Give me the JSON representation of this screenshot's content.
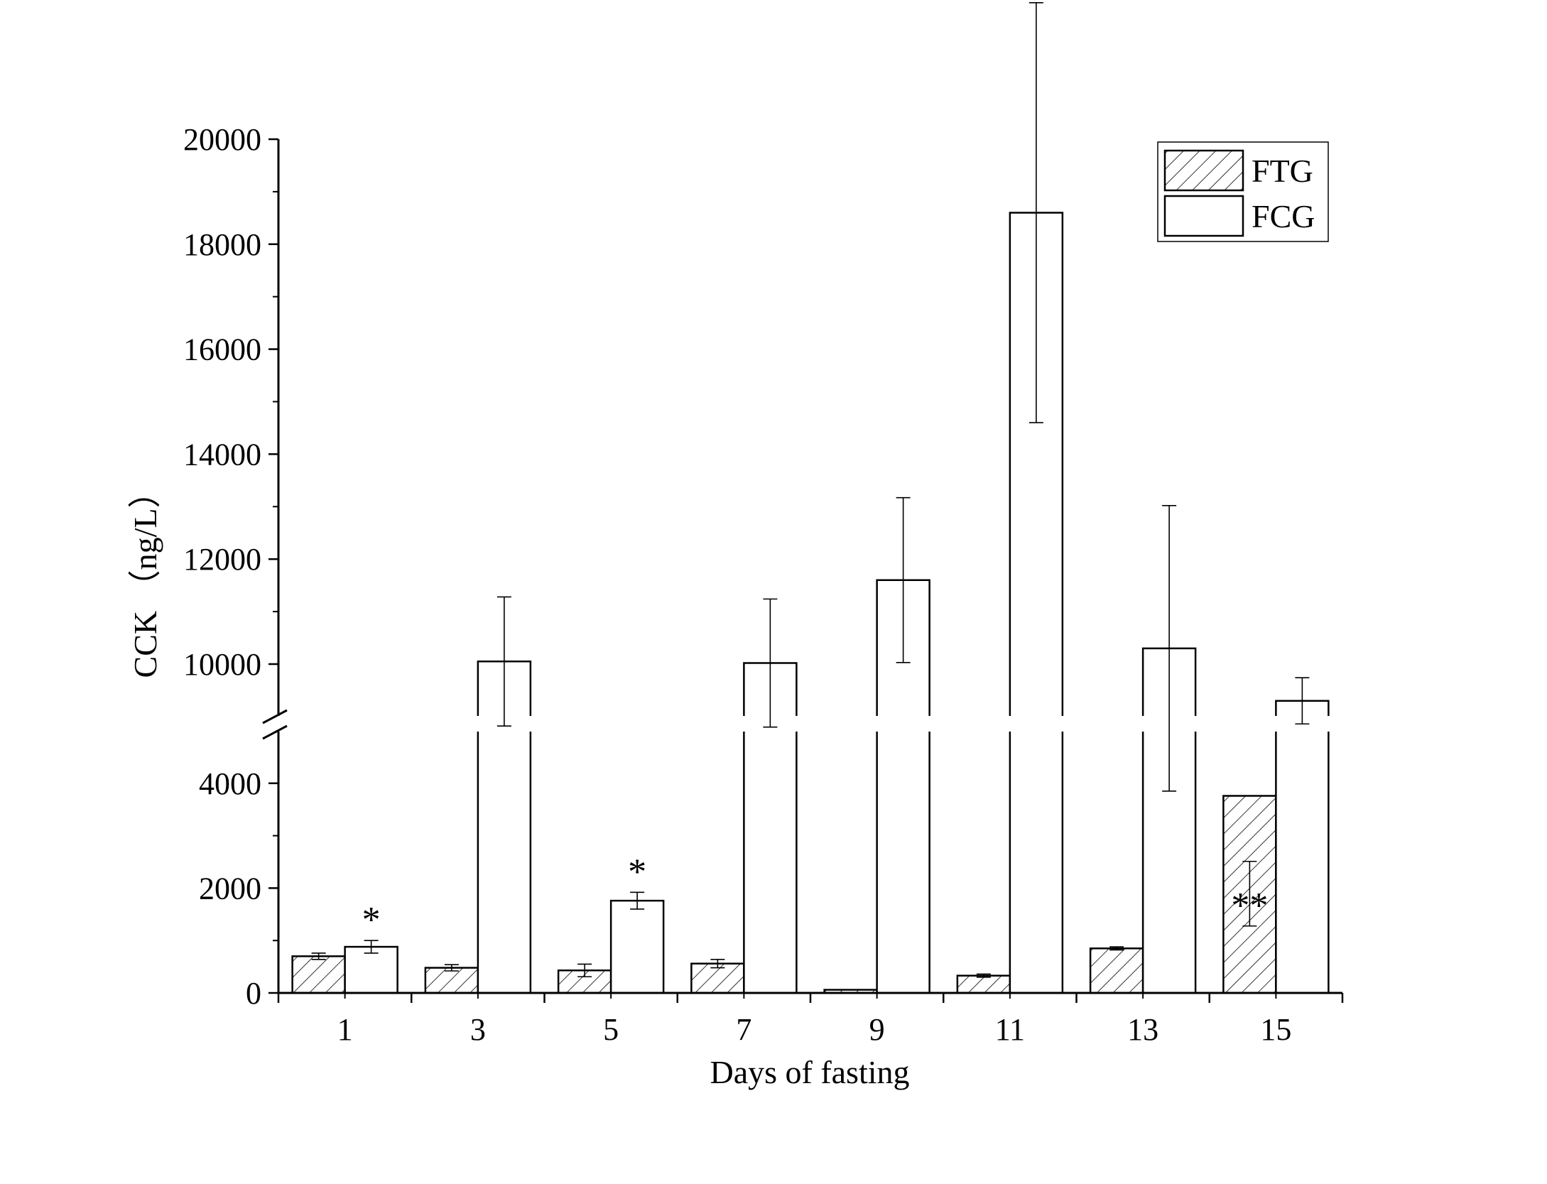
{
  "chart_data": {
    "type": "bar",
    "title": "",
    "xlabel": "Days of fasting",
    "ylabel": "CCK （ng/L）",
    "categories": [
      "1",
      "3",
      "5",
      "7",
      "9",
      "11",
      "13",
      "15"
    ],
    "series": [
      {
        "name": "FTG",
        "fill": "hatched",
        "values": [
          700,
          480,
          430,
          560,
          60,
          330,
          850,
          3760
        ],
        "errors": [
          60,
          60,
          120,
          80,
          0,
          30,
          30,
          1250
        ],
        "significance": [
          "",
          "",
          "",
          "",
          "",
          "",
          "",
          "**"
        ]
      },
      {
        "name": "FCG",
        "fill": "white",
        "values": [
          880,
          10050,
          1760,
          10020,
          11600,
          18600,
          10300,
          9300
        ],
        "errors": [
          120,
          1230,
          160,
          1220,
          1570,
          4000,
          2720,
          440
        ],
        "significance": [
          "*",
          "",
          "*",
          "",
          "",
          "**",
          "",
          ""
        ]
      }
    ],
    "y_axis": {
      "broken": true,
      "lower_range": [
        0,
        5000
      ],
      "upper_range": [
        9000,
        20000
      ],
      "lower_ticks": [
        0,
        2000,
        4000
      ],
      "upper_ticks": [
        10000,
        12000,
        14000,
        16000,
        18000,
        20000
      ]
    },
    "legend_position": "top-right",
    "grid": false
  },
  "colors": {
    "stroke": "#000000",
    "background": "#ffffff",
    "bar_fill": "#ffffff"
  }
}
